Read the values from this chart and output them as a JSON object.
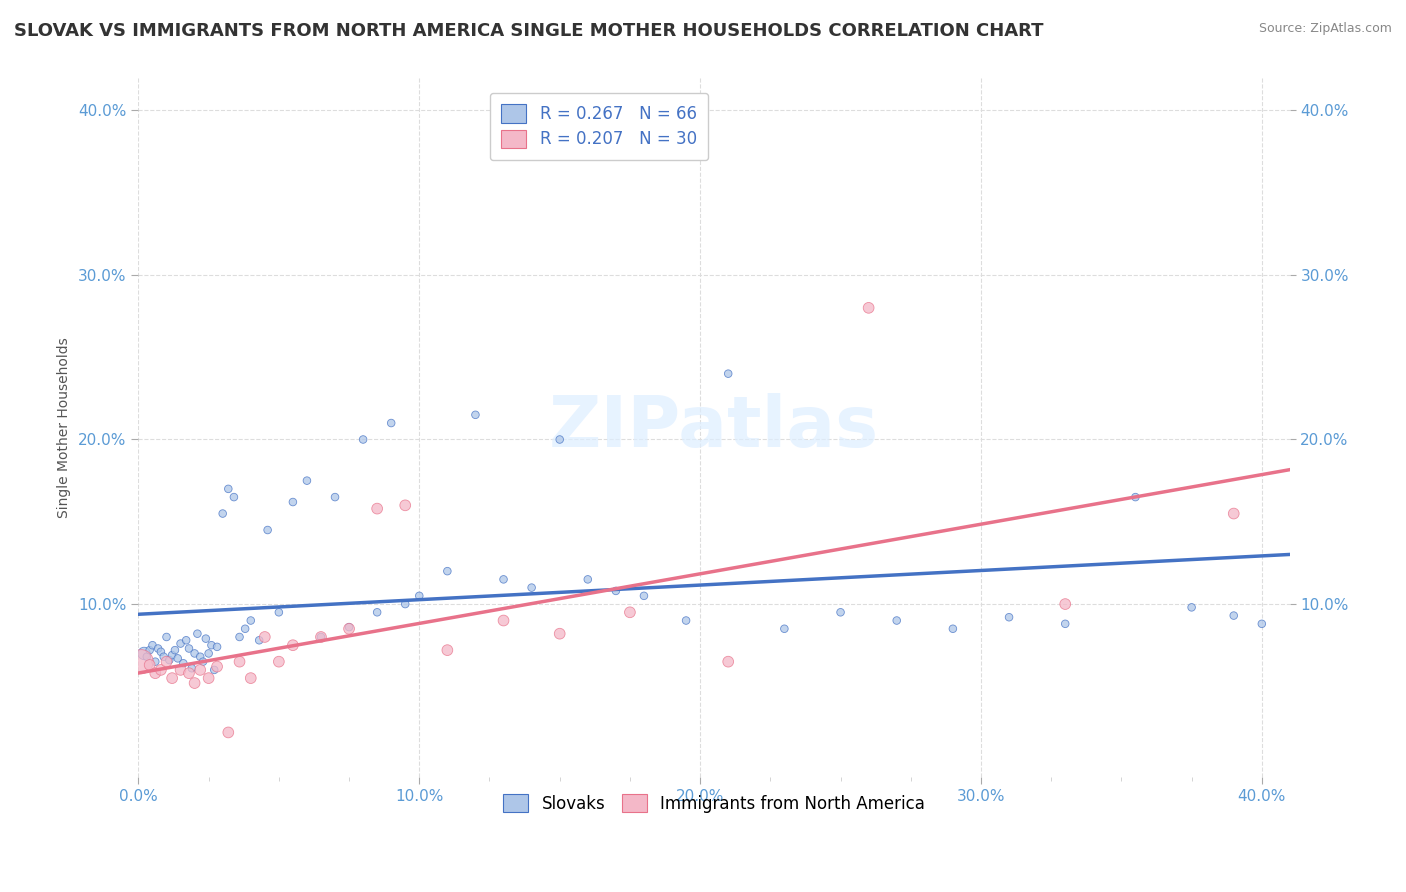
{
  "title": "SLOVAK VS IMMIGRANTS FROM NORTH AMERICA SINGLE MOTHER HOUSEHOLDS CORRELATION CHART",
  "source": "Source: ZipAtlas.com",
  "ylabel": "Single Mother Households",
  "xlim": [
    0.0,
    0.41
  ],
  "ylim": [
    -0.005,
    0.42
  ],
  "slovak_color": "#aec6e8",
  "immigrant_color": "#f4b8c8",
  "slovak_line_color": "#4472c4",
  "immigrant_line_color": "#e8728a",
  "r_slovak": 0.267,
  "n_slovak": 66,
  "r_immigrant": 0.207,
  "n_immigrant": 30,
  "slovak_scatter_x": [
    0.002,
    0.003,
    0.004,
    0.005,
    0.006,
    0.007,
    0.008,
    0.009,
    0.01,
    0.011,
    0.012,
    0.013,
    0.014,
    0.015,
    0.016,
    0.017,
    0.018,
    0.019,
    0.02,
    0.021,
    0.022,
    0.023,
    0.024,
    0.025,
    0.026,
    0.027,
    0.028,
    0.03,
    0.032,
    0.034,
    0.036,
    0.038,
    0.04,
    0.043,
    0.046,
    0.05,
    0.055,
    0.06,
    0.065,
    0.07,
    0.075,
    0.08,
    0.085,
    0.09,
    0.095,
    0.1,
    0.11,
    0.12,
    0.13,
    0.14,
    0.15,
    0.16,
    0.17,
    0.18,
    0.195,
    0.21,
    0.23,
    0.25,
    0.27,
    0.29,
    0.31,
    0.33,
    0.355,
    0.375,
    0.39,
    0.4
  ],
  "slovak_scatter_y": [
    0.07,
    0.068,
    0.072,
    0.075,
    0.065,
    0.073,
    0.071,
    0.068,
    0.08,
    0.066,
    0.069,
    0.072,
    0.067,
    0.076,
    0.064,
    0.078,
    0.073,
    0.061,
    0.07,
    0.082,
    0.068,
    0.065,
    0.079,
    0.07,
    0.075,
    0.06,
    0.074,
    0.155,
    0.17,
    0.165,
    0.08,
    0.085,
    0.09,
    0.078,
    0.145,
    0.095,
    0.162,
    0.175,
    0.08,
    0.165,
    0.086,
    0.2,
    0.095,
    0.21,
    0.1,
    0.105,
    0.12,
    0.215,
    0.115,
    0.11,
    0.2,
    0.115,
    0.108,
    0.105,
    0.09,
    0.24,
    0.085,
    0.095,
    0.09,
    0.085,
    0.092,
    0.088,
    0.165,
    0.098,
    0.093,
    0.088
  ],
  "slovak_scatter_size": [
    80,
    30,
    30,
    30,
    30,
    30,
    30,
    30,
    30,
    30,
    30,
    30,
    30,
    30,
    30,
    30,
    30,
    30,
    30,
    30,
    30,
    30,
    30,
    30,
    30,
    30,
    30,
    30,
    30,
    30,
    30,
    30,
    30,
    30,
    30,
    30,
    30,
    30,
    30,
    30,
    30,
    30,
    30,
    30,
    30,
    30,
    30,
    30,
    30,
    30,
    30,
    30,
    30,
    30,
    30,
    30,
    30,
    30,
    30,
    30,
    30,
    30,
    30,
    30,
    30,
    30
  ],
  "immigrant_scatter_x": [
    0.001,
    0.004,
    0.006,
    0.008,
    0.01,
    0.012,
    0.015,
    0.018,
    0.02,
    0.022,
    0.025,
    0.028,
    0.032,
    0.036,
    0.04,
    0.045,
    0.05,
    0.055,
    0.065,
    0.075,
    0.085,
    0.095,
    0.11,
    0.13,
    0.15,
    0.175,
    0.21,
    0.26,
    0.33,
    0.39
  ],
  "immigrant_scatter_y": [
    0.065,
    0.063,
    0.058,
    0.06,
    0.065,
    0.055,
    0.06,
    0.058,
    0.052,
    0.06,
    0.055,
    0.062,
    0.022,
    0.065,
    0.055,
    0.08,
    0.065,
    0.075,
    0.08,
    0.085,
    0.158,
    0.16,
    0.072,
    0.09,
    0.082,
    0.095,
    0.065,
    0.28,
    0.1,
    0.155
  ],
  "immigrant_scatter_size": [
    300,
    60,
    60,
    60,
    60,
    60,
    60,
    60,
    60,
    60,
    60,
    60,
    60,
    60,
    60,
    60,
    60,
    60,
    60,
    60,
    60,
    60,
    60,
    60,
    60,
    60,
    60,
    60,
    60,
    60
  ],
  "background_color": "#ffffff",
  "grid_color": "#dddddd",
  "title_fontsize": 13,
  "axis_label_fontsize": 10,
  "tick_fontsize": 11,
  "legend_fontsize": 12
}
